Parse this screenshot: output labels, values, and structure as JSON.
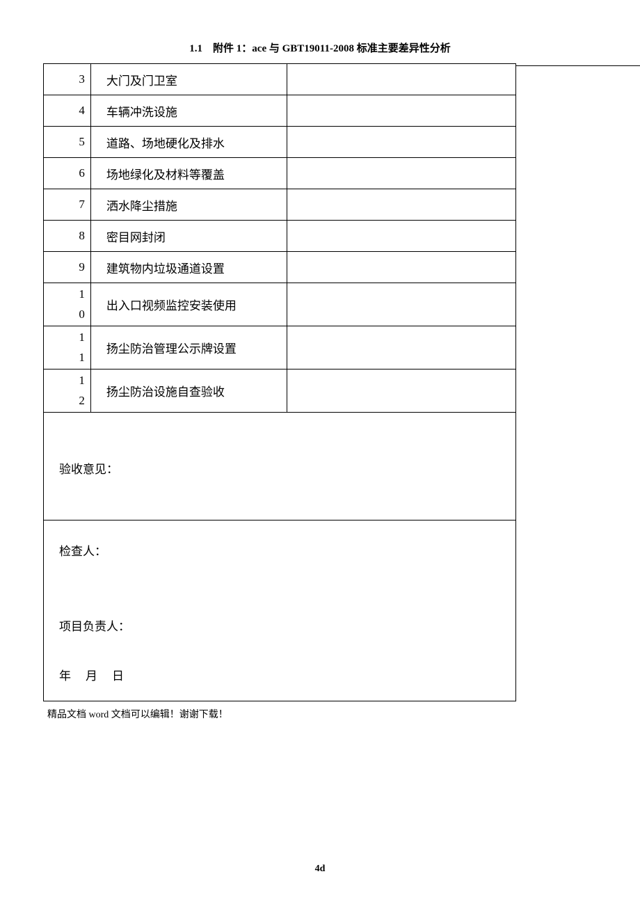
{
  "header": {
    "title": "1.1　附件 1：ace 与 GBT19011-2008 标准主要差异性分析"
  },
  "table": {
    "rows": [
      {
        "num": "3",
        "item": "大门及门卫室",
        "result": ""
      },
      {
        "num": "4",
        "item": "车辆冲洗设施",
        "result": ""
      },
      {
        "num": "5",
        "item": "道路、场地硬化及排水",
        "result": ""
      },
      {
        "num": "6",
        "item": "场地绿化及材料等覆盖",
        "result": ""
      },
      {
        "num": "7",
        "item": "洒水降尘措施",
        "result": ""
      },
      {
        "num": "8",
        "item": "密目网封闭",
        "result": ""
      },
      {
        "num": "9",
        "item": "建筑物内垃圾通道设置",
        "result": ""
      },
      {
        "num": "1\n0",
        "item": "出入口视频监控安装使用",
        "result": ""
      },
      {
        "num": "1\n1",
        "item": "扬尘防治管理公示牌设置",
        "result": ""
      },
      {
        "num": "1\n2",
        "item": "扬尘防治设施自查验收",
        "result": ""
      }
    ],
    "opinion_label": "验收意见：",
    "inspector_label": "检查人：",
    "project_leader_label": "项目负责人：",
    "date_label": "年　月　日"
  },
  "footer": {
    "text": "精品文档 word 文档可以编辑！谢谢下载！"
  },
  "page_number": "4d",
  "colors": {
    "text": "#000000",
    "background": "#ffffff",
    "border": "#000000"
  }
}
